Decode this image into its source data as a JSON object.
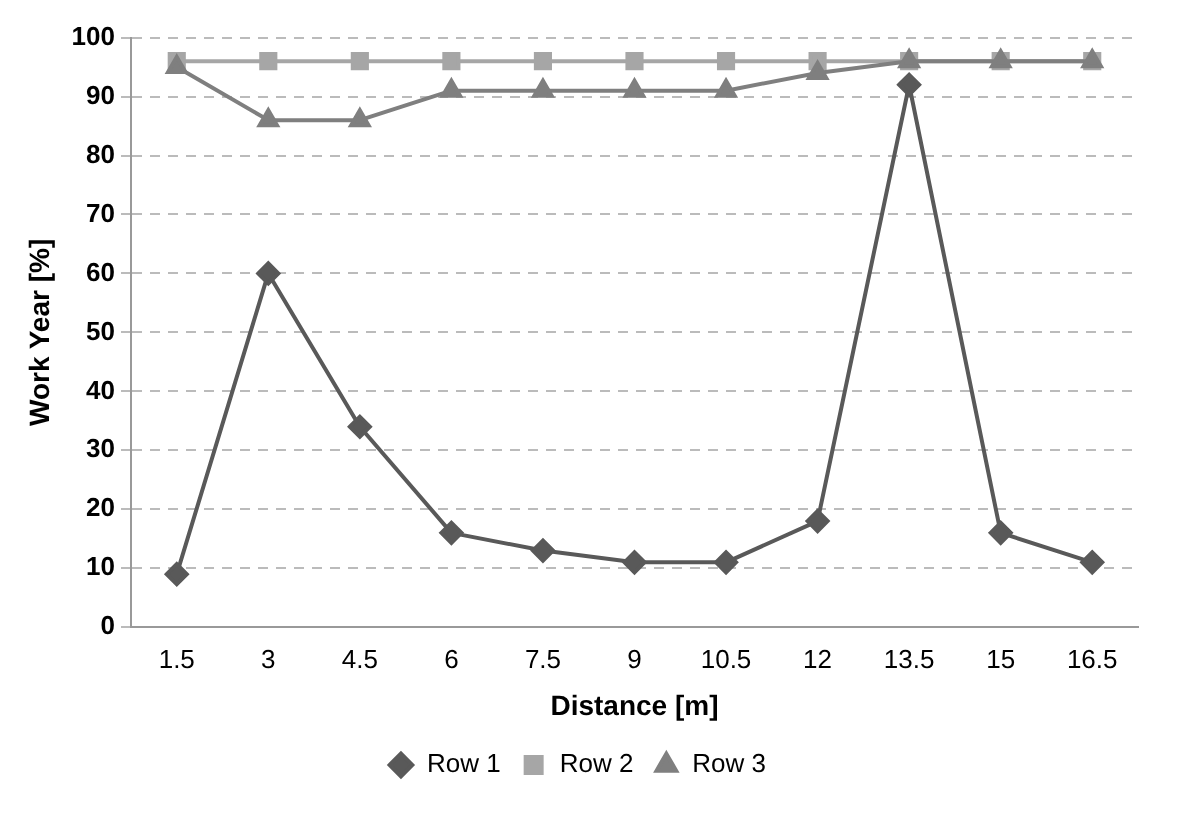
{
  "chart_data": {
    "type": "line",
    "xlabel": "Distance [m]",
    "ylabel": "Work Year [%]",
    "categories": [
      "1.5",
      "3",
      "4.5",
      "6",
      "7.5",
      "9",
      "10.5",
      "12",
      "13.5",
      "15",
      "16.5"
    ],
    "series": [
      {
        "name": "Row 1",
        "color": "#595959",
        "marker": "diamond",
        "values": [
          9,
          60,
          34,
          16,
          13,
          11,
          11,
          18,
          92,
          16,
          11
        ]
      },
      {
        "name": "Row 2",
        "color": "#a6a6a6",
        "marker": "square",
        "values": [
          96,
          96,
          96,
          96,
          96,
          96,
          96,
          96,
          96,
          96,
          96
        ]
      },
      {
        "name": "Row 3",
        "color": "#7f7f7f",
        "marker": "triangle",
        "values": [
          95,
          86,
          86,
          91,
          91,
          91,
          91,
          94,
          96,
          96,
          96
        ]
      }
    ],
    "ylim": [
      0,
      100
    ],
    "yticks": [
      0,
      10,
      20,
      30,
      40,
      50,
      60,
      70,
      80,
      90,
      100
    ],
    "grid": "y",
    "legend": "bottom",
    "line_style": "solid"
  }
}
